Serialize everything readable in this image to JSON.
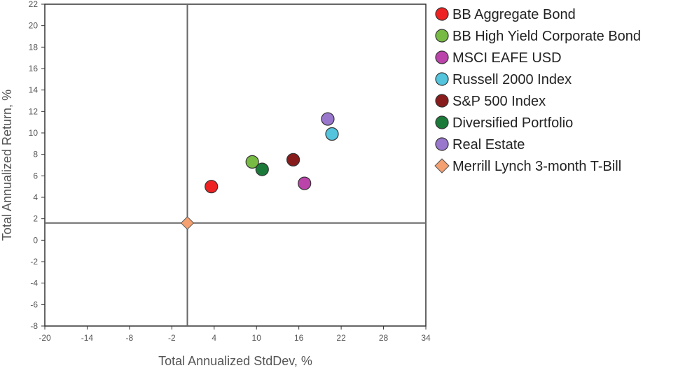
{
  "chart_data": {
    "type": "scatter",
    "title": "",
    "xlabel": "Total Annualized StdDev, %",
    "ylabel": "Total Annualized Return, %",
    "xlim": [
      -20,
      34
    ],
    "ylim": [
      -8,
      22
    ],
    "xticks": [
      "-20",
      "-14",
      "-8",
      "-2",
      "4",
      "10",
      "16",
      "22",
      "28",
      "34"
    ],
    "yticks": [
      "22",
      "20",
      "18",
      "16",
      "14",
      "12",
      "10",
      "8",
      "6",
      "4",
      "2",
      "0",
      "-2",
      "-4",
      "-6",
      "-8"
    ],
    "grid": false,
    "legend_position": "right",
    "reference_point": {
      "x": 0.2,
      "y": 1.6
    },
    "series": [
      {
        "name": "BB Aggregate Bond",
        "color": "#ee2222",
        "marker": "circle",
        "x": 3.6,
        "y": 5.0
      },
      {
        "name": "BB High Yield Corporate Bond",
        "color": "#77bb44",
        "marker": "circle",
        "x": 9.4,
        "y": 7.3
      },
      {
        "name": "MSCI EAFE USD",
        "color": "#bb44aa",
        "marker": "circle",
        "x": 16.8,
        "y": 5.3
      },
      {
        "name": "Russell 2000 Index",
        "color": "#55c4dd",
        "marker": "circle",
        "x": 20.7,
        "y": 9.9
      },
      {
        "name": "S&P 500 Index",
        "color": "#881c1c",
        "marker": "circle",
        "x": 15.2,
        "y": 7.5
      },
      {
        "name": "Diversified Portfolio",
        "color": "#1b7a3a",
        "marker": "circle",
        "x": 10.8,
        "y": 6.6
      },
      {
        "name": "Real Estate",
        "color": "#9977cc",
        "marker": "circle",
        "x": 20.1,
        "y": 11.3
      },
      {
        "name": "Merrill Lynch 3-month T-Bill",
        "color": "#f4a070",
        "marker": "diamond",
        "x": 0.2,
        "y": 1.6
      }
    ]
  }
}
